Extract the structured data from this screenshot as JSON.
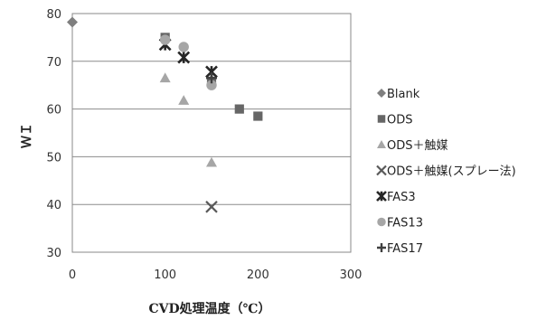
{
  "chart_data": {
    "type": "scatter",
    "title": "",
    "xlabel": "CVD処理温度（℃）",
    "ylabel": "ＷＩ",
    "xlim": [
      0,
      300
    ],
    "ylim": [
      30,
      80
    ],
    "xticks": [
      0,
      100,
      200,
      300
    ],
    "yticks": [
      30,
      40,
      50,
      60,
      70,
      80
    ],
    "grid": "horizontal",
    "legend_position": "right",
    "series": [
      {
        "name": "Blank",
        "marker": "diamond",
        "color": "#7f7f7f",
        "points": [
          [
            0,
            78.2
          ]
        ]
      },
      {
        "name": "ODS",
        "marker": "square",
        "color": "#666666",
        "points": [
          [
            100,
            75.0
          ],
          [
            150,
            65.8
          ],
          [
            180,
            60.0
          ],
          [
            200,
            58.5
          ]
        ]
      },
      {
        "name": "ODS＋触媒",
        "marker": "triangle",
        "color": "#a6a6a6",
        "points": [
          [
            100,
            66.5
          ],
          [
            120,
            61.8
          ],
          [
            150,
            48.8
          ]
        ]
      },
      {
        "name": "ODS＋触媒(スプレー法)",
        "marker": "x",
        "color": "#595959",
        "points": [
          [
            150,
            39.5
          ]
        ]
      },
      {
        "name": "FAS3",
        "marker": "asterisk",
        "color": "#262626",
        "points": [
          [
            100,
            73.5
          ],
          [
            120,
            70.8
          ],
          [
            150,
            67.8
          ]
        ]
      },
      {
        "name": "FAS13",
        "marker": "circle",
        "color": "#a6a6a6",
        "points": [
          [
            100,
            74.5
          ],
          [
            120,
            73.0
          ],
          [
            150,
            65.0
          ]
        ]
      },
      {
        "name": "FAS17",
        "marker": "plus",
        "color": "#404040",
        "points": [
          [
            150,
            66.5
          ]
        ]
      }
    ]
  }
}
